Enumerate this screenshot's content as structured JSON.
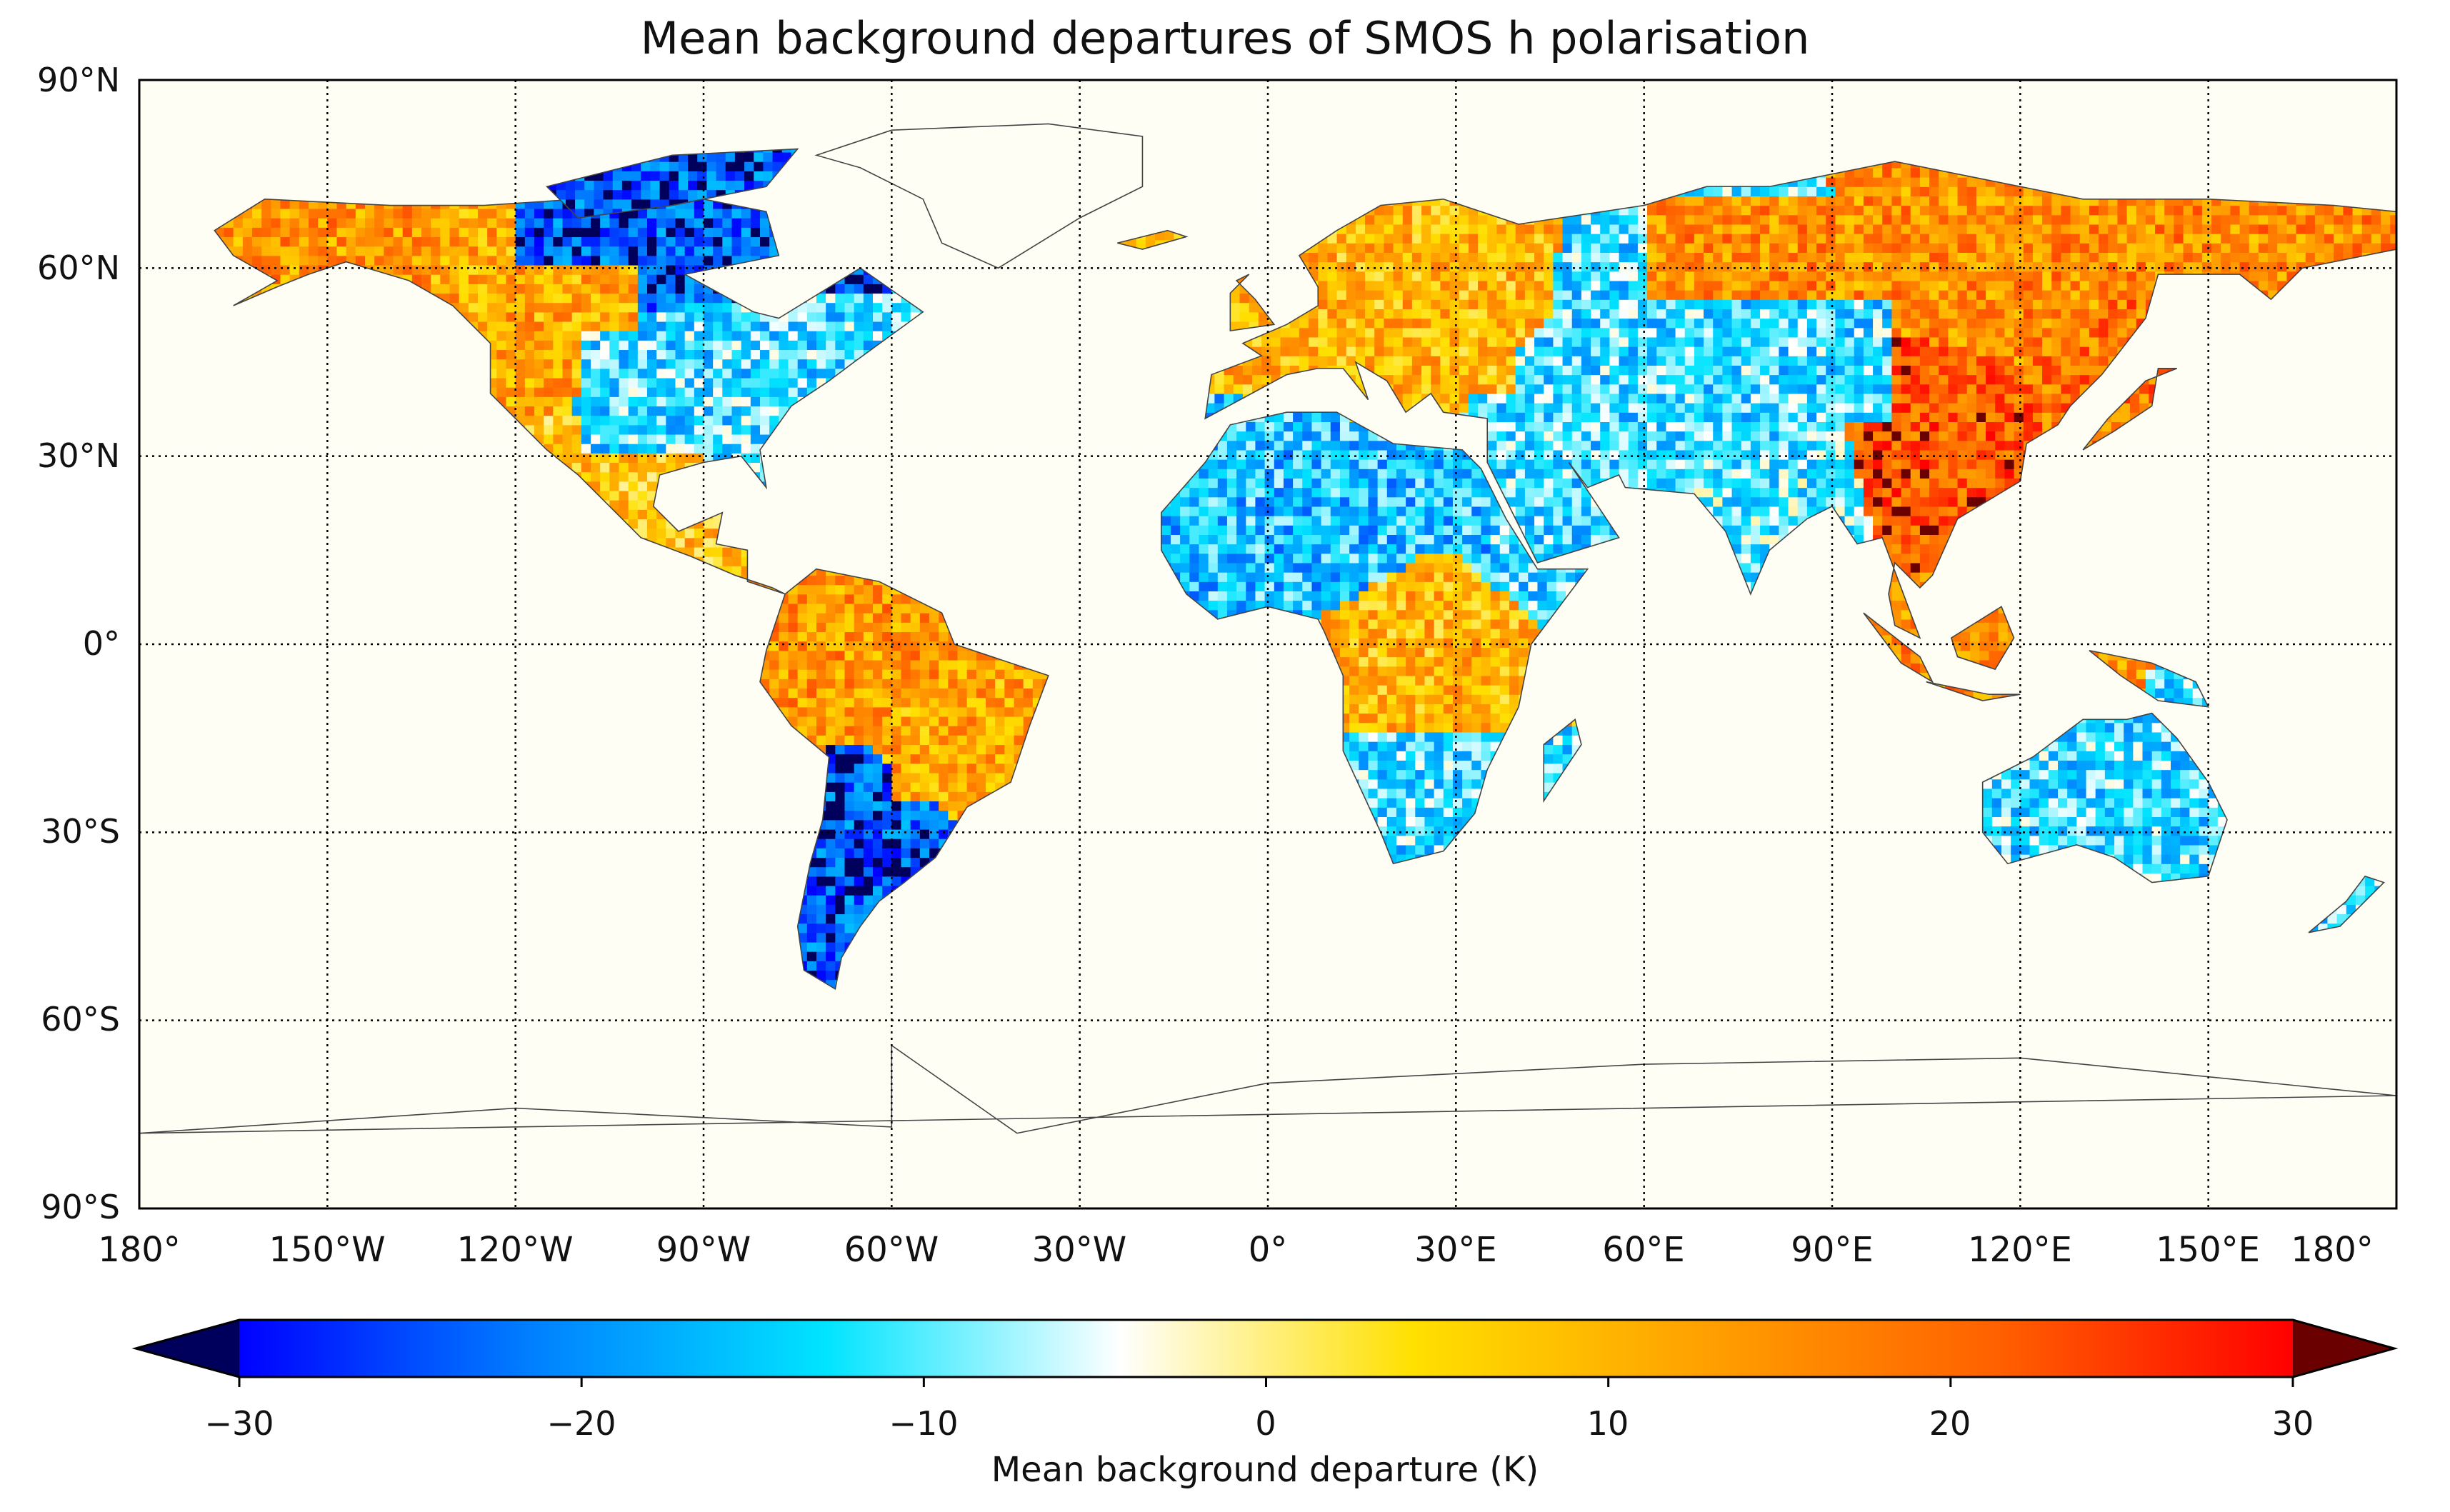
{
  "map": {
    "title": "Mean background departures of SMOS h polarisation",
    "projection": "equirectangular (plate carrée)",
    "extent": {
      "lon": [
        -180,
        180
      ],
      "lat": [
        -90,
        90
      ]
    },
    "gridlines": "dotted, every 30°",
    "ocean_color": "#fffef4",
    "coastline_color": "#444444"
  },
  "lat_labels": [
    "90°N",
    "60°N",
    "30°N",
    "0°",
    "30°S",
    "60°S",
    "90°S"
  ],
  "lon_labels": [
    "180°",
    "150°W",
    "120°W",
    "90°W",
    "60°W",
    "30°W",
    "0°",
    "30°E",
    "60°E",
    "90°E",
    "120°E",
    "150°E",
    "180°"
  ],
  "colorbar": {
    "label": "Mean background departure (K)",
    "ticks": [
      "−30",
      "−20",
      "−10",
      "0",
      "10",
      "20",
      "30"
    ],
    "range": [
      -30,
      30
    ],
    "extend": "both",
    "colormap": [
      "#00005c",
      "#0000ff",
      "#0080ff",
      "#00e4ff",
      "#ffffff",
      "#ffe000",
      "#ffa000",
      "#ff6000",
      "#ff0000",
      "#6b0000"
    ]
  },
  "chart_data": {
    "type": "heatmap",
    "title": "Mean background departures of SMOS h polarisation",
    "xlabel": "",
    "ylabel": "",
    "xlim": [
      -180,
      180
    ],
    "ylim": [
      -90,
      90
    ],
    "value_label": "Mean background departure (K)",
    "value_range": [
      -30,
      30
    ],
    "grid": true,
    "regions": [
      {
        "name": "Alaska",
        "lon": [
          -165,
          -140
        ],
        "lat": [
          58,
          70
        ],
        "value": 14
      },
      {
        "name": "Canadian Arctic",
        "lon": [
          -120,
          -70
        ],
        "lat": [
          60,
          75
        ],
        "value": -25
      },
      {
        "name": "Western Canada",
        "lon": [
          -130,
          -100
        ],
        "lat": [
          50,
          62
        ],
        "value": 12
      },
      {
        "name": "Central United States",
        "lon": [
          -110,
          -75
        ],
        "lat": [
          30,
          50
        ],
        "value": -12
      },
      {
        "name": "Mexico",
        "lon": [
          -110,
          -90
        ],
        "lat": [
          15,
          30
        ],
        "value": 8
      },
      {
        "name": "Northern South America",
        "lon": [
          -80,
          -50
        ],
        "lat": [
          -10,
          10
        ],
        "value": 14
      },
      {
        "name": "Brazil",
        "lon": [
          -60,
          -35
        ],
        "lat": [
          -25,
          -5
        ],
        "value": 12
      },
      {
        "name": "Argentina",
        "lon": [
          -70,
          -55
        ],
        "lat": [
          -40,
          -25
        ],
        "value": -25
      },
      {
        "name": "Sahara",
        "lon": [
          -15,
          35
        ],
        "lat": [
          15,
          30
        ],
        "value": -15
      },
      {
        "name": "Arabian Peninsula",
        "lon": [
          35,
          55
        ],
        "lat": [
          15,
          30
        ],
        "value": -12
      },
      {
        "name": "Central Africa",
        "lon": [
          10,
          40
        ],
        "lat": [
          -10,
          5
        ],
        "value": 10
      },
      {
        "name": "Southern Africa",
        "lon": [
          15,
          35
        ],
        "lat": [
          -33,
          -15
        ],
        "value": -12
      },
      {
        "name": "Europe",
        "lon": [
          -10,
          40
        ],
        "lat": [
          40,
          60
        ],
        "value": 10
      },
      {
        "name": "Siberia",
        "lon": [
          60,
          180
        ],
        "lat": [
          55,
          72
        ],
        "value": 15
      },
      {
        "name": "Central Asia",
        "lon": [
          50,
          100
        ],
        "lat": [
          35,
          55
        ],
        "value": -12
      },
      {
        "name": "India",
        "lon": [
          70,
          90
        ],
        "lat": [
          10,
          30
        ],
        "value": -10
      },
      {
        "name": "South China",
        "lon": [
          100,
          120
        ],
        "lat": [
          20,
          35
        ],
        "value": 22
      },
      {
        "name": "Southeast Asia",
        "lon": [
          95,
          140
        ],
        "lat": [
          -10,
          10
        ],
        "value": 15
      },
      {
        "name": "Australia",
        "lon": [
          115,
          153
        ],
        "lat": [
          -40,
          -12
        ],
        "value": -12
      },
      {
        "name": "Japan",
        "lon": [
          130,
          145
        ],
        "lat": [
          32,
          45
        ],
        "value": 18
      }
    ]
  }
}
